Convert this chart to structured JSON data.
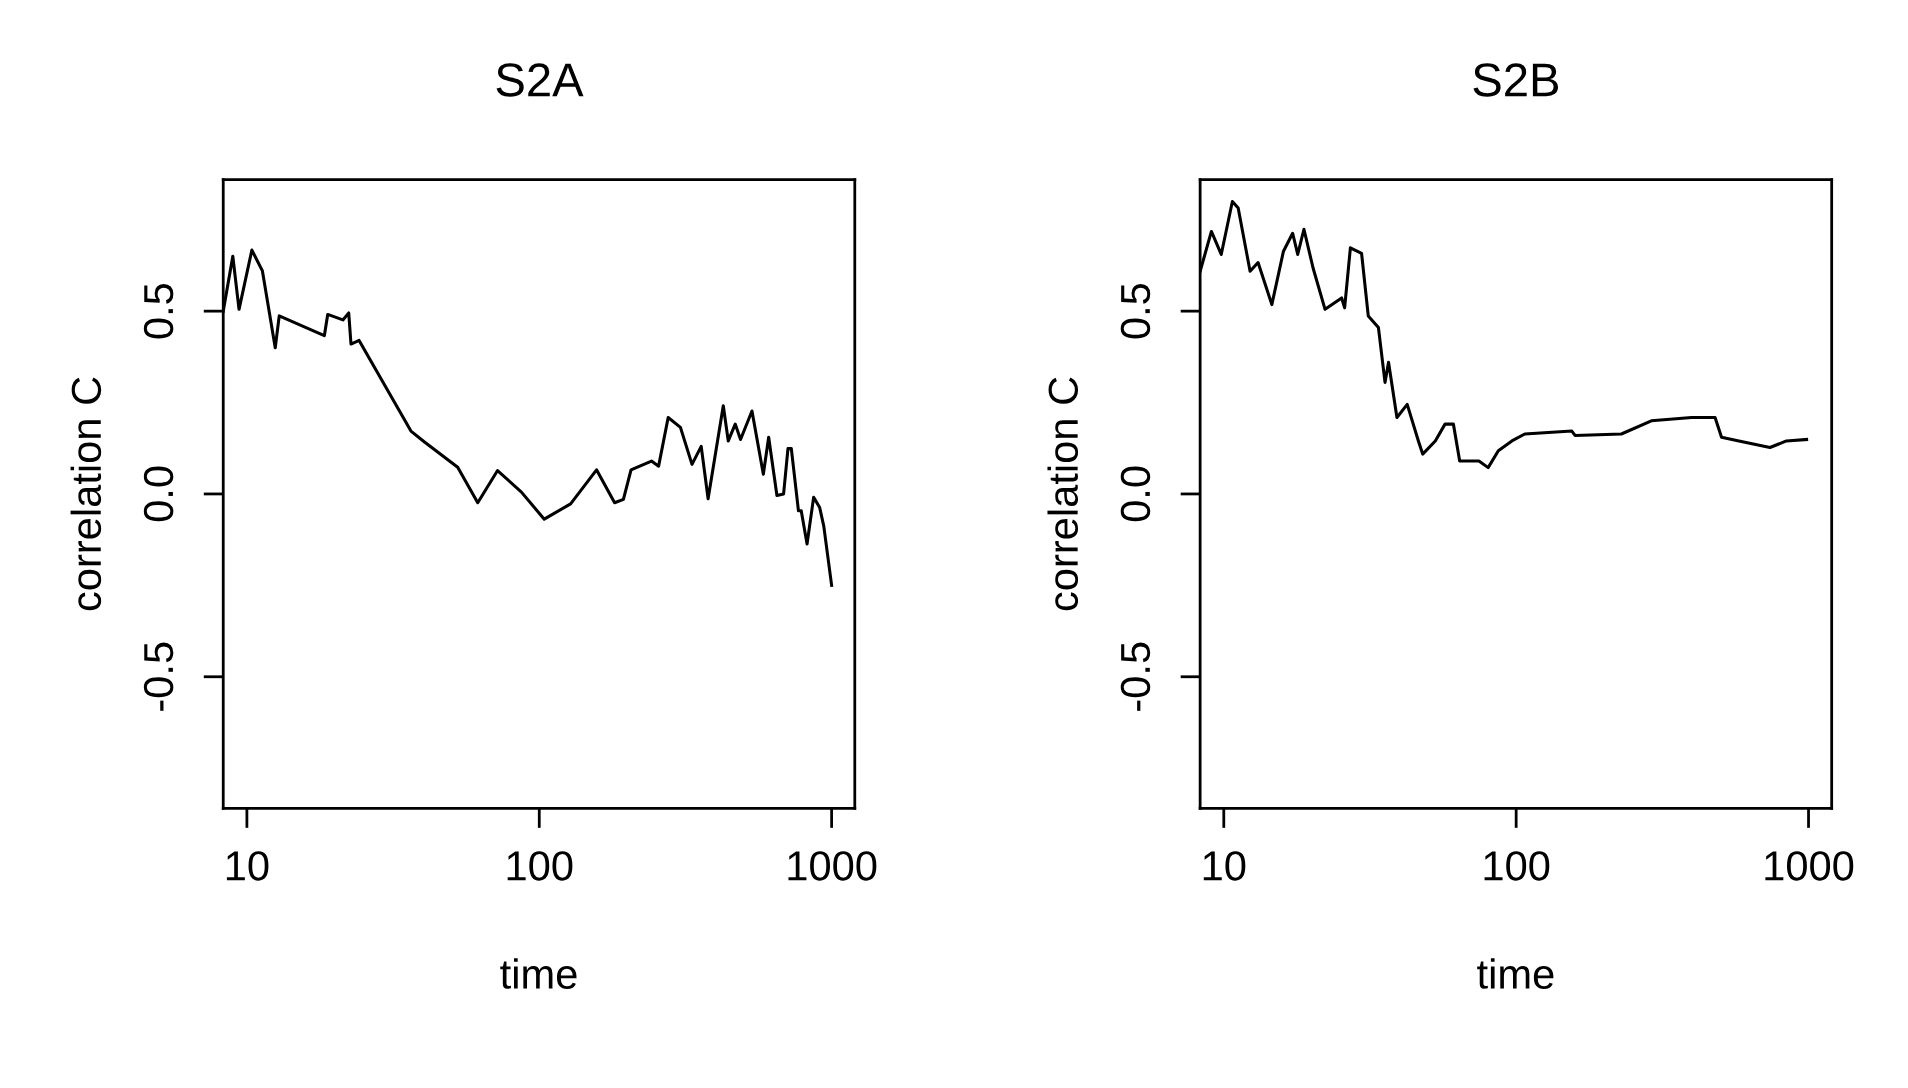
{
  "chart_data": [
    {
      "type": "line",
      "title": "S2A",
      "xlabel": "time",
      "ylabel": "correlation C",
      "log": "x",
      "xlim": [
        8.3,
        1200
      ],
      "ylim": [
        -0.86,
        0.86
      ],
      "xticks": [
        10,
        100,
        1000
      ],
      "yticks": [
        {
          "value": -0.5,
          "label": "-0.5"
        },
        {
          "value": 0,
          "label": "0.0"
        },
        {
          "value": 0.5,
          "label": "0.5"
        }
      ],
      "series": [
        {
          "color": "#000000",
          "x": [
            8.3,
            8.95,
            9.4,
            10.4,
            11.3,
            12.5,
            12.9,
            18.4,
            18.9,
            21.3,
            22.3,
            22.7,
            24.2,
            36.4,
            40.5,
            52.6,
            61.6,
            72,
            86.9,
            104,
            128,
            157,
            181,
            194,
            206,
            242,
            256,
            276,
            304,
            333,
            358,
            378,
            426,
            443,
            468,
            488,
            534,
            584,
            609,
            650,
            685,
            709,
            728,
            770,
            787,
            824,
            868,
            910,
            940,
            1000
          ],
          "values": [
            0.5,
            0.65,
            0.505,
            0.667,
            0.61,
            0.4,
            0.487,
            0.433,
            0.491,
            0.476,
            0.495,
            0.41,
            0.42,
            0.172,
            0.142,
            0.073,
            -0.024,
            0.064,
            0.005,
            -0.069,
            -0.027,
            0.066,
            -0.024,
            -0.015,
            0.066,
            0.09,
            0.076,
            0.209,
            0.182,
            0.081,
            0.13,
            -0.013,
            0.241,
            0.145,
            0.191,
            0.149,
            0.227,
            0.054,
            0.155,
            -0.004,
            0.0,
            0.124,
            0.124,
            -0.046,
            -0.046,
            -0.137,
            -0.009,
            -0.037,
            -0.088,
            -0.25
          ]
        }
      ]
    },
    {
      "type": "line",
      "title": "S2B",
      "xlabel": "time",
      "ylabel": "correlation C",
      "log": "x",
      "xlim": [
        8.3,
        1200
      ],
      "ylim": [
        -0.86,
        0.86
      ],
      "xticks": [
        10,
        100,
        1000
      ],
      "yticks": [
        {
          "value": -0.5,
          "label": "-0.5"
        },
        {
          "value": 0,
          "label": "0.0"
        },
        {
          "value": 0.5,
          "label": "0.5"
        }
      ],
      "series": [
        {
          "color": "#000000",
          "x": [
            8.3,
            9.07,
            9.8,
            10.7,
            11.2,
            12.3,
            13.1,
            14.6,
            16.0,
            17.2,
            17.9,
            18.8,
            20.2,
            22.2,
            25.3,
            25.9,
            27.1,
            29.6,
            31.2,
            33.8,
            35.6,
            36.6,
            39.1,
            42.4,
            46.3,
            47.9,
            52.9,
            57.1,
            61,
            64.1,
            74.6,
            80.2,
            86.9,
            96.7,
            107,
            155,
            159,
            229,
            290,
            398,
            479,
            504,
            578,
            738,
            840,
            985
          ],
          "values": [
            0.609,
            0.718,
            0.655,
            0.8,
            0.782,
            0.609,
            0.633,
            0.518,
            0.664,
            0.713,
            0.655,
            0.724,
            0.618,
            0.505,
            0.536,
            0.509,
            0.673,
            0.658,
            0.487,
            0.455,
            0.305,
            0.36,
            0.209,
            0.245,
            0.145,
            0.109,
            0.145,
            0.191,
            0.191,
            0.09,
            0.09,
            0.072,
            0.118,
            0.145,
            0.164,
            0.172,
            0.16,
            0.164,
            0.2,
            0.209,
            0.209,
            0.155,
            0.145,
            0.127,
            0.145,
            0.149
          ]
        }
      ]
    }
  ]
}
